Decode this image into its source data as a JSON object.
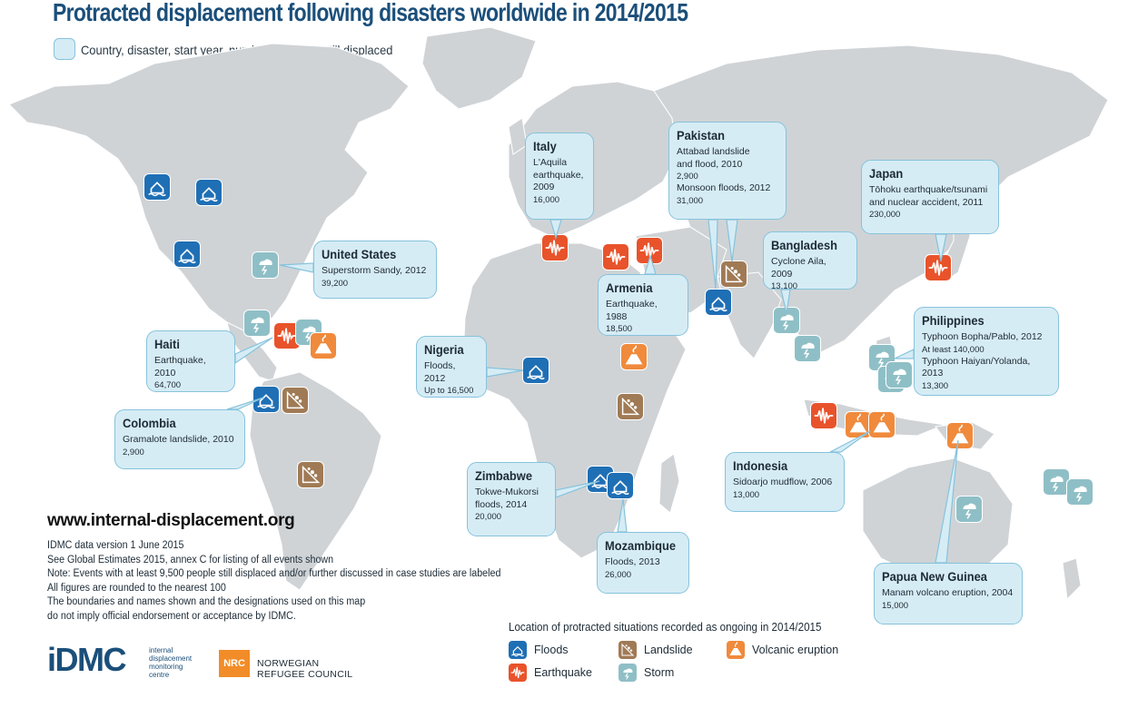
{
  "title": "Protracted displacement following disasters worldwide in 2014/2015",
  "key_text": "Country, disaster, start year, number of people still displaced",
  "colors": {
    "flood": "#1f6fb5",
    "earthquake": "#e8532b",
    "landslide": "#a07a55",
    "volcanic": "#f08a3c",
    "storm": "#8fbfc6",
    "land": "#cfd3d6",
    "callout_fill": "#d6ecf5",
    "callout_border": "#86c3dc",
    "title": "#1b4f7a"
  },
  "callouts": [
    {
      "country": "Italy",
      "lines": [
        "L'Aquila\nearthquake,\n2009"
      ],
      "nums": [
        "16,000"
      ]
    },
    {
      "country": "Pakistan",
      "lines": [
        "Attabad landslide\nand flood, 2010"
      ],
      "nums": [
        "2,900"
      ],
      "lines2": [
        "Monsoon floods, 2012"
      ],
      "nums2": [
        "31,000"
      ]
    },
    {
      "country": "Japan",
      "lines": [
        "Tōhoku earthquake/tsunami\nand nuclear accident, 2011"
      ],
      "nums": [
        "230,000"
      ]
    },
    {
      "country": "United States",
      "lines": [
        "Superstorm Sandy, 2012"
      ],
      "nums": [
        "39,200"
      ]
    },
    {
      "country": "Bangladesh",
      "lines": [
        "Cyclone Aila, 2009"
      ],
      "nums": [
        "13,100"
      ]
    },
    {
      "country": "Armenia",
      "lines": [
        "Earthquake, 1988"
      ],
      "nums": [
        "18,500"
      ]
    },
    {
      "country": "Philippines",
      "lines": [
        "Typhoon Bopha/Pablo, 2012"
      ],
      "nums": [
        "At least 140,000"
      ],
      "lines2": [
        "Typhoon Haiyan/Yolanda, 2013"
      ],
      "nums2": [
        "13,300"
      ]
    },
    {
      "country": "Haiti",
      "lines": [
        "Earthquake, 2010"
      ],
      "nums": [
        "64,700"
      ]
    },
    {
      "country": "Nigeria",
      "lines": [
        "Floods, 2012"
      ],
      "nums": [
        "Up to 16,500"
      ]
    },
    {
      "country": "Colombia",
      "lines": [
        "Gramalote landslide, 2010"
      ],
      "nums": [
        "2,900"
      ]
    },
    {
      "country": "Zimbabwe",
      "lines": [
        "Tokwe-Mukorsi\nfloods, 2014"
      ],
      "nums": [
        "20,000"
      ]
    },
    {
      "country": "Indonesia",
      "lines": [
        "Sidoarjo mudflow, 2006"
      ],
      "nums": [
        "13,000"
      ]
    },
    {
      "country": "Mozambique",
      "lines": [
        "Floods, 2013"
      ],
      "nums": [
        "26,000"
      ]
    },
    {
      "country": "Papua New Guinea",
      "lines": [
        "Manam volcano eruption, 2004"
      ],
      "nums": [
        "15,000"
      ]
    }
  ],
  "url": "www.internal-displacement.org",
  "notes": [
    "IDMC data version 1 June 2015",
    "See Global Estimates 2015, annex C for listing of all events shown",
    "Note: Events with at least 9,500 people still displaced and/or further discussed in case studies are labeled",
    "All figures are rounded to the nearest 100",
    "The boundaries and names shown and the designations used on this map",
    "do not imply official endorsement or acceptance by IDMC."
  ],
  "legend": {
    "title": "Location of protracted situations recorded as ongoing in 2014/2015",
    "items": [
      {
        "label": "Floods",
        "type": "flood"
      },
      {
        "label": "Earthquake",
        "type": "earthquake"
      },
      {
        "label": "Landslide",
        "type": "landslide"
      },
      {
        "label": "Storm",
        "type": "storm"
      },
      {
        "label": "Volcanic eruption",
        "type": "volcanic"
      }
    ]
  },
  "logos": {
    "idmc_word": "iDMC",
    "idmc_sub": "internal\ndisplacement\nmonitoring\ncentre",
    "nrc_box": "NRC",
    "nrc_text": "NORWEGIAN\nREFUGEE COUNCIL"
  }
}
